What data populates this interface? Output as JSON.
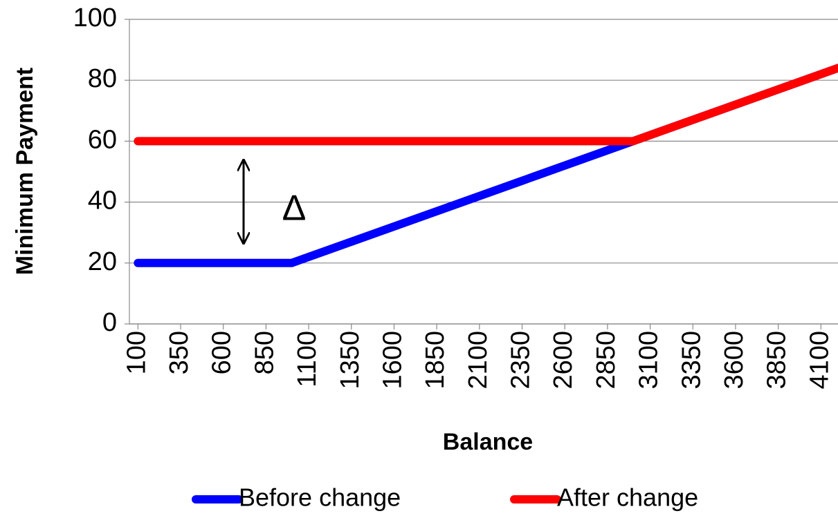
{
  "chart_data": {
    "type": "line",
    "xlabel": "Balance",
    "ylabel": "Minimum Payment",
    "annotation": "Δ",
    "series": [
      {
        "name": "Before change",
        "color": "#0000ff",
        "x": [
          100,
          1000,
          4200
        ],
        "values": [
          20,
          20,
          84
        ]
      },
      {
        "name": "After change",
        "color": "#ff0000",
        "x": [
          100,
          3000,
          4200
        ],
        "values": [
          60,
          60,
          84
        ]
      }
    ],
    "xlim": [
      50,
      4200
    ],
    "xticks": [
      100,
      350,
      600,
      850,
      1100,
      1350,
      1600,
      1850,
      2100,
      2350,
      2600,
      2850,
      3100,
      3350,
      3600,
      3850,
      4100
    ],
    "ylim": [
      0,
      100
    ],
    "yticks": [
      0,
      20,
      40,
      60,
      80,
      100
    ],
    "grid": true,
    "legend": "bottom"
  }
}
